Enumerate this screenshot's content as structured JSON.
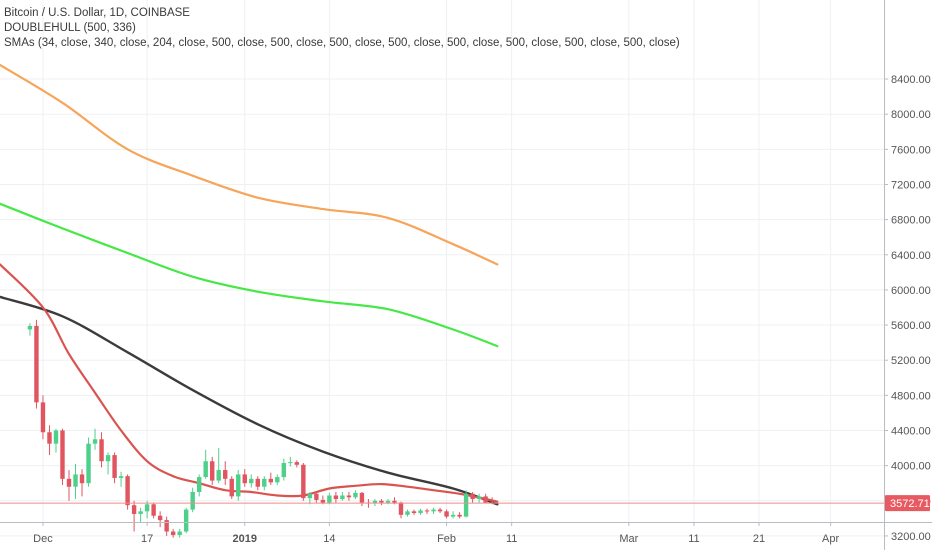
{
  "legend": {
    "line1": "Bitcoin / U.S. Dollar, 1D, COINBASE",
    "line2": "DOUBLEHULL (500, 336)",
    "line3": "SMAs (34, close, 340, close, 204, close, 500, close, 500, close, 500, close, 500, close, 500, close, 500, close, 500, close, 500, close)"
  },
  "price_label": "3572.71",
  "colors": {
    "up": "#4ed08a",
    "down": "#e0555f",
    "orange": "#f6a55a",
    "green": "#45e845",
    "red": "#d9534f",
    "black": "#3b3b3b",
    "price_line": "#f08a8a",
    "grid": "#eef0f3",
    "axis_text": "#555555"
  },
  "chart_data": {
    "type": "line",
    "title": "Bitcoin / U.S. Dollar, 1D, COINBASE",
    "ylim": [
      3000,
      8800
    ],
    "xlim": [
      -4.6,
      131.2
    ],
    "grid": true,
    "y_ticks": [
      3200,
      3600,
      4000,
      4400,
      4800,
      5200,
      5600,
      6000,
      6400,
      6800,
      7200,
      7600,
      8000,
      8400
    ],
    "y_tick_labels": [
      "3200.00",
      "3600.00",
      "4000.00",
      "4400.00",
      "4800.00",
      "5200.00",
      "5600.00",
      "6000.00",
      "6400.00",
      "6800.00",
      "7200.00",
      "7600.00",
      "8000.00",
      "8400.00"
    ],
    "x_ticks": [
      {
        "day": 2,
        "label": "Dec",
        "bold": false
      },
      {
        "day": 18,
        "label": "17",
        "bold": false
      },
      {
        "day": 33,
        "label": "2019",
        "bold": true
      },
      {
        "day": 46,
        "label": "14",
        "bold": false
      },
      {
        "day": 64,
        "label": "Feb",
        "bold": false
      },
      {
        "day": 74,
        "label": "11",
        "bold": false
      },
      {
        "day": 92,
        "label": "Mar",
        "bold": false
      },
      {
        "day": 102,
        "label": "11",
        "bold": false
      },
      {
        "day": 112,
        "label": "21",
        "bold": false
      },
      {
        "day": 123,
        "label": "Apr",
        "bold": false
      }
    ],
    "last_price": 3572.71,
    "candles": [
      [
        5550,
        5620,
        5480,
        5590
      ],
      [
        5590,
        5660,
        4650,
        4720
      ],
      [
        4720,
        4800,
        4300,
        4380
      ],
      [
        4380,
        4460,
        4120,
        4250
      ],
      [
        4250,
        4420,
        4150,
        4400
      ],
      [
        4400,
        4420,
        3780,
        3850
      ],
      [
        3850,
        3950,
        3600,
        3760
      ],
      [
        3760,
        4020,
        3620,
        3900
      ],
      [
        3900,
        3960,
        3650,
        3800
      ],
      [
        3800,
        4320,
        3760,
        4250
      ],
      [
        4250,
        4420,
        4180,
        4300
      ],
      [
        4300,
        4380,
        3980,
        4050
      ],
      [
        4050,
        4150,
        3900,
        4120
      ],
      [
        4120,
        4150,
        3800,
        3860
      ],
      [
        3860,
        3930,
        3760,
        3880
      ],
      [
        3880,
        3900,
        3500,
        3550
      ],
      [
        3550,
        3600,
        3250,
        3450
      ],
      [
        3450,
        3520,
        3350,
        3480
      ],
      [
        3480,
        3600,
        3400,
        3560
      ],
      [
        3560,
        3580,
        3400,
        3430
      ],
      [
        3430,
        3480,
        3300,
        3380
      ],
      [
        3380,
        3420,
        3200,
        3250
      ],
      [
        3250,
        3280,
        3180,
        3210
      ],
      [
        3210,
        3280,
        3180,
        3250
      ],
      [
        3250,
        3520,
        3230,
        3500
      ],
      [
        3500,
        3750,
        3470,
        3700
      ],
      [
        3700,
        3900,
        3650,
        3870
      ],
      [
        3870,
        4180,
        3850,
        4050
      ],
      [
        4050,
        4100,
        3780,
        3830
      ],
      [
        3830,
        4200,
        3800,
        3950
      ],
      [
        3950,
        4050,
        3780,
        3850
      ],
      [
        3850,
        3880,
        3620,
        3650
      ],
      [
        3650,
        3950,
        3600,
        3900
      ],
      [
        3900,
        3960,
        3760,
        3800
      ],
      [
        3800,
        3900,
        3750,
        3850
      ],
      [
        3850,
        3880,
        3720,
        3760
      ],
      [
        3760,
        3880,
        3720,
        3850
      ],
      [
        3850,
        3920,
        3780,
        3810
      ],
      [
        3810,
        3900,
        3780,
        3870
      ],
      [
        3870,
        4080,
        3830,
        4030
      ],
      [
        4030,
        4100,
        3990,
        4040
      ],
      [
        4040,
        4060,
        3980,
        4010
      ],
      [
        4010,
        4030,
        3600,
        3630
      ],
      [
        3630,
        3700,
        3560,
        3680
      ],
      [
        3680,
        3700,
        3580,
        3610
      ],
      [
        3610,
        3660,
        3560,
        3580
      ],
      [
        3580,
        3690,
        3560,
        3660
      ],
      [
        3660,
        3700,
        3580,
        3620
      ],
      [
        3620,
        3700,
        3600,
        3660
      ],
      [
        3660,
        3700,
        3600,
        3640
      ],
      [
        3640,
        3720,
        3620,
        3690
      ],
      [
        3690,
        3700,
        3540,
        3580
      ],
      [
        3580,
        3620,
        3520,
        3570
      ],
      [
        3570,
        3620,
        3540,
        3600
      ],
      [
        3600,
        3620,
        3550,
        3580
      ],
      [
        3580,
        3620,
        3560,
        3600
      ],
      [
        3600,
        3640,
        3560,
        3580
      ],
      [
        3580,
        3590,
        3400,
        3440
      ],
      [
        3440,
        3500,
        3420,
        3480
      ],
      [
        3480,
        3500,
        3440,
        3460
      ],
      [
        3460,
        3510,
        3440,
        3490
      ],
      [
        3490,
        3510,
        3450,
        3480
      ],
      [
        3480,
        3520,
        3450,
        3500
      ],
      [
        3500,
        3520,
        3460,
        3480
      ],
      [
        3480,
        3500,
        3400,
        3420
      ],
      [
        3420,
        3480,
        3400,
        3440
      ],
      [
        3440,
        3470,
        3400,
        3420
      ],
      [
        3420,
        3720,
        3410,
        3680
      ],
      [
        3680,
        3700,
        3580,
        3620
      ],
      [
        3620,
        3680,
        3580,
        3650
      ],
      [
        3650,
        3680,
        3570,
        3580
      ],
      [
        3580,
        3640,
        3560,
        3573
      ]
    ],
    "series": [
      {
        "color_key": "orange",
        "width": 2.2,
        "points": [
          [
            -4.6,
            8560
          ],
          [
            5,
            8130
          ],
          [
            15,
            7600
          ],
          [
            25,
            7300
          ],
          [
            35,
            7050
          ],
          [
            45,
            6920
          ],
          [
            55,
            6820
          ],
          [
            65,
            6520
          ],
          [
            71.8,
            6290
          ]
        ]
      },
      {
        "color_key": "green",
        "width": 2.2,
        "points": [
          [
            -4.6,
            6980
          ],
          [
            5,
            6700
          ],
          [
            15,
            6420
          ],
          [
            25,
            6150
          ],
          [
            35,
            5980
          ],
          [
            45,
            5870
          ],
          [
            55,
            5780
          ],
          [
            65,
            5550
          ],
          [
            71.8,
            5360
          ]
        ]
      },
      {
        "color_key": "black",
        "width": 2.4,
        "points": [
          [
            -4.6,
            5920
          ],
          [
            5,
            5700
          ],
          [
            15,
            5290
          ],
          [
            25,
            4860
          ],
          [
            35,
            4470
          ],
          [
            45,
            4160
          ],
          [
            55,
            3920
          ],
          [
            65,
            3740
          ],
          [
            71.8,
            3560
          ]
        ]
      },
      {
        "color_key": "red",
        "width": 2.2,
        "points": [
          [
            -4.6,
            6290
          ],
          [
            2,
            5800
          ],
          [
            6,
            5270
          ],
          [
            10,
            4830
          ],
          [
            14,
            4400
          ],
          [
            18,
            4050
          ],
          [
            22,
            3880
          ],
          [
            26,
            3800
          ],
          [
            30,
            3720
          ],
          [
            34,
            3700
          ],
          [
            38,
            3660
          ],
          [
            42,
            3660
          ],
          [
            46,
            3740
          ],
          [
            50,
            3770
          ],
          [
            54,
            3790
          ],
          [
            58,
            3760
          ],
          [
            62,
            3720
          ],
          [
            66,
            3680
          ],
          [
            70,
            3620
          ],
          [
            71.8,
            3590
          ]
        ]
      }
    ]
  }
}
